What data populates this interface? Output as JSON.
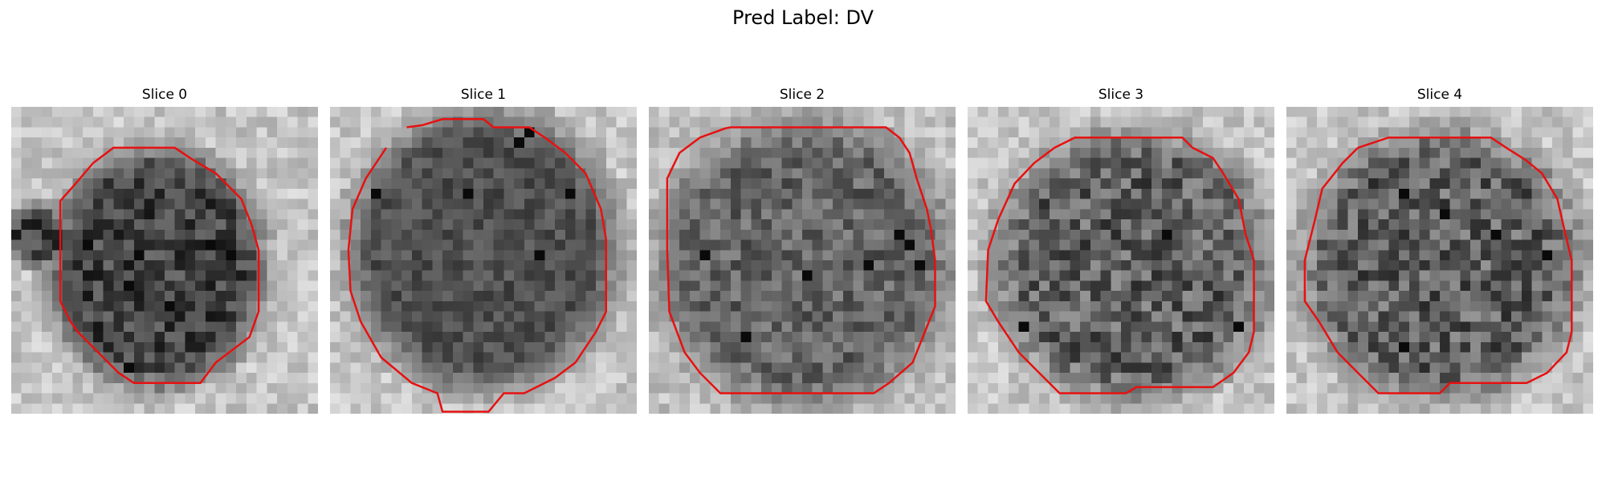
{
  "figure": {
    "title": "Pred Label: DV"
  },
  "slices": [
    {
      "label": "Slice 0"
    },
    {
      "label": "Slice 1"
    },
    {
      "label": "Slice 2"
    },
    {
      "label": "Slice 3"
    },
    {
      "label": "Slice 4"
    }
  ],
  "colors": {
    "contour": "#e81010",
    "background": "#ffffff"
  }
}
